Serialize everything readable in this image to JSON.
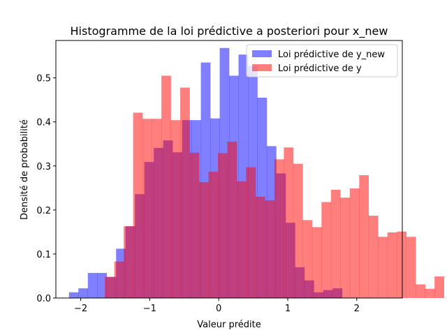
{
  "chart_data": {
    "type": "bar",
    "title": "Histogramme de la loi prédictive a posteriori pour x_new",
    "xlabel": "Valeur prédite",
    "ylabel": "Densité de probabilité",
    "xlim": [
      -2.36,
      2.66
    ],
    "ylim": [
      0,
      0.585
    ],
    "xticks": [
      -2,
      -1,
      0,
      1,
      2
    ],
    "xtick_labels": [
      "−2",
      "−1",
      "0",
      "1",
      "2"
    ],
    "yticks": [
      0.0,
      0.1,
      0.2,
      0.3,
      0.4,
      0.5
    ],
    "ytick_labels": [
      "0.0",
      "0.1",
      "0.2",
      "0.3",
      "0.4",
      "0.5"
    ],
    "grid": false,
    "legend_position": "upper right",
    "series": [
      {
        "name": "Loi prédictive de y_new",
        "color": "#0000ff",
        "alpha": 0.5,
        "bin_start": -2.17,
        "bin_width": 0.1365,
        "values": [
          0.013,
          0.022,
          0.057,
          0.057,
          0.048,
          0.112,
          0.163,
          0.236,
          0.309,
          0.341,
          0.358,
          0.331,
          0.404,
          0.404,
          0.535,
          0.408,
          0.568,
          0.505,
          0.553,
          0.527,
          0.455,
          0.345,
          0.283,
          0.171,
          0.07,
          0.04,
          0.013,
          0.018,
          0.022
        ]
      },
      {
        "name": "Loi prédictive de y",
        "color": "#ff0000",
        "alpha": 0.5,
        "bin_start": -1.65,
        "bin_width": 0.1365,
        "values": [
          0.048,
          0.083,
          0.163,
          0.421,
          0.407,
          0.407,
          0.505,
          0.404,
          0.478,
          0.33,
          0.263,
          0.287,
          0.329,
          0.355,
          0.265,
          0.297,
          0.23,
          0.222,
          0.315,
          0.342,
          0.305,
          0.177,
          0.161,
          0.218,
          0.246,
          0.228,
          0.249,
          0.279,
          0.187,
          0.139,
          0.149,
          0.151,
          0.139,
          0.031,
          0.021,
          0.049
        ]
      }
    ]
  }
}
